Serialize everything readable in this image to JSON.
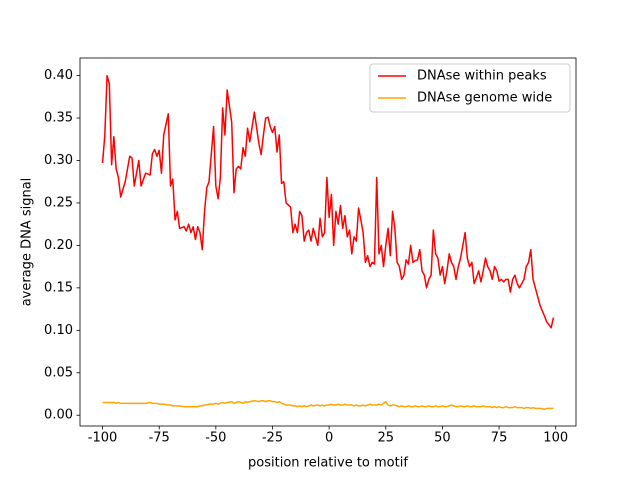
{
  "chart_data": {
    "type": "line",
    "xlabel": "position relative to motif",
    "ylabel": "average DNA signal",
    "x": [
      -100,
      -99,
      -98,
      -97,
      -96,
      -95,
      -94,
      -93,
      -92,
      -90,
      -88,
      -87,
      -86,
      -84,
      -83,
      -81,
      -79,
      -78,
      -77,
      -76,
      -75,
      -74,
      -73,
      -71,
      -70,
      -69,
      -68,
      -67,
      -66,
      -64,
      -63,
      -62,
      -61,
      -60,
      -59,
      -58,
      -57,
      -56,
      -55,
      -54,
      -53,
      -51,
      -50,
      -49,
      -48,
      -47,
      -46,
      -45,
      -43,
      -42,
      -41,
      -40,
      -39,
      -38,
      -37,
      -36,
      -35,
      -33,
      -31,
      -30,
      -29,
      -28,
      -27,
      -26,
      -25,
      -24,
      -23,
      -22,
      -21,
      -20,
      -19,
      -17,
      -16,
      -15,
      -14,
      -13,
      -12,
      -11,
      -10,
      -9,
      -8,
      -7,
      -5,
      -4,
      -3,
      -2,
      -1,
      0,
      1,
      2,
      3,
      4,
      5,
      6,
      7,
      8,
      9,
      10,
      11,
      12,
      13,
      14,
      15,
      16,
      17,
      18,
      19,
      20,
      21,
      22,
      23,
      24,
      25,
      26,
      27,
      28,
      29,
      30,
      31,
      32,
      33,
      34,
      35,
      36,
      37,
      38,
      39,
      40,
      41,
      42,
      43,
      44,
      45,
      46,
      47,
      48,
      49,
      50,
      51,
      52,
      53,
      54,
      55,
      56,
      57,
      58,
      59,
      60,
      61,
      62,
      63,
      64,
      65,
      66,
      67,
      68,
      69,
      70,
      71,
      72,
      73,
      74,
      75,
      76,
      77,
      78,
      79,
      80,
      81,
      82,
      83,
      84,
      85,
      86,
      87,
      88,
      89,
      90,
      91,
      92,
      93,
      95,
      96,
      98,
      99
    ],
    "series": [
      {
        "name": "DNAse within peaks",
        "color": "#ff0000",
        "values": [
          0.297,
          0.33,
          0.4,
          0.39,
          0.295,
          0.328,
          0.29,
          0.28,
          0.257,
          0.275,
          0.305,
          0.303,
          0.27,
          0.3,
          0.27,
          0.285,
          0.283,
          0.308,
          0.313,
          0.305,
          0.312,
          0.285,
          0.33,
          0.355,
          0.27,
          0.278,
          0.23,
          0.24,
          0.22,
          0.222,
          0.217,
          0.225,
          0.215,
          0.222,
          0.207,
          0.222,
          0.215,
          0.195,
          0.24,
          0.268,
          0.275,
          0.34,
          0.27,
          0.255,
          0.28,
          0.362,
          0.33,
          0.383,
          0.345,
          0.262,
          0.29,
          0.293,
          0.29,
          0.315,
          0.305,
          0.338,
          0.322,
          0.357,
          0.32,
          0.307,
          0.33,
          0.35,
          0.351,
          0.34,
          0.333,
          0.34,
          0.31,
          0.33,
          0.273,
          0.275,
          0.25,
          0.245,
          0.215,
          0.225,
          0.215,
          0.24,
          0.235,
          0.205,
          0.215,
          0.218,
          0.205,
          0.22,
          0.2,
          0.232,
          0.21,
          0.215,
          0.28,
          0.233,
          0.26,
          0.2,
          0.24,
          0.225,
          0.247,
          0.22,
          0.235,
          0.21,
          0.218,
          0.19,
          0.21,
          0.205,
          0.244,
          0.23,
          0.215,
          0.18,
          0.188,
          0.175,
          0.18,
          0.178,
          0.28,
          0.19,
          0.2,
          0.175,
          0.2,
          0.22,
          0.188,
          0.24,
          0.22,
          0.18,
          0.175,
          0.16,
          0.165,
          0.183,
          0.178,
          0.2,
          0.18,
          0.182,
          0.183,
          0.195,
          0.17,
          0.165,
          0.15,
          0.16,
          0.165,
          0.218,
          0.19,
          0.185,
          0.165,
          0.175,
          0.155,
          0.17,
          0.19,
          0.18,
          0.175,
          0.16,
          0.175,
          0.185,
          0.2,
          0.215,
          0.185,
          0.175,
          0.18,
          0.155,
          0.162,
          0.17,
          0.157,
          0.17,
          0.185,
          0.175,
          0.17,
          0.16,
          0.175,
          0.17,
          0.158,
          0.16,
          0.157,
          0.16,
          0.16,
          0.145,
          0.16,
          0.165,
          0.155,
          0.15,
          0.155,
          0.16,
          0.175,
          0.18,
          0.195,
          0.16,
          0.15,
          0.14,
          0.13,
          0.117,
          0.11,
          0.103,
          0.115
        ]
      },
      {
        "name": "DNAse genome wide",
        "color": "#ffa500",
        "values": [
          0.015,
          0.015,
          0.015,
          0.015,
          0.015,
          0.015,
          0.014,
          0.015,
          0.014,
          0.014,
          0.014,
          0.014,
          0.014,
          0.014,
          0.014,
          0.014,
          0.015,
          0.014,
          0.014,
          0.014,
          0.013,
          0.013,
          0.013,
          0.012,
          0.012,
          0.011,
          0.011,
          0.011,
          0.011,
          0.01,
          0.01,
          0.01,
          0.01,
          0.01,
          0.01,
          0.01,
          0.011,
          0.011,
          0.012,
          0.012,
          0.013,
          0.013,
          0.014,
          0.013,
          0.014,
          0.015,
          0.014,
          0.015,
          0.016,
          0.014,
          0.015,
          0.016,
          0.015,
          0.014,
          0.016,
          0.015,
          0.016,
          0.017,
          0.016,
          0.017,
          0.017,
          0.016,
          0.017,
          0.017,
          0.016,
          0.016,
          0.015,
          0.016,
          0.014,
          0.013,
          0.012,
          0.012,
          0.011,
          0.011,
          0.01,
          0.011,
          0.01,
          0.011,
          0.01,
          0.011,
          0.012,
          0.011,
          0.012,
          0.011,
          0.012,
          0.011,
          0.012,
          0.012,
          0.013,
          0.012,
          0.012,
          0.013,
          0.012,
          0.012,
          0.013,
          0.012,
          0.012,
          0.012,
          0.011,
          0.012,
          0.011,
          0.011,
          0.012,
          0.011,
          0.012,
          0.013,
          0.012,
          0.012,
          0.012,
          0.013,
          0.012,
          0.014,
          0.016,
          0.012,
          0.011,
          0.012,
          0.012,
          0.011,
          0.01,
          0.011,
          0.01,
          0.01,
          0.011,
          0.01,
          0.01,
          0.011,
          0.01,
          0.01,
          0.011,
          0.01,
          0.01,
          0.011,
          0.01,
          0.01,
          0.011,
          0.01,
          0.01,
          0.011,
          0.01,
          0.01,
          0.011,
          0.012,
          0.011,
          0.01,
          0.01,
          0.011,
          0.01,
          0.01,
          0.011,
          0.01,
          0.01,
          0.011,
          0.01,
          0.01,
          0.01,
          0.011,
          0.01,
          0.01,
          0.01,
          0.009,
          0.01,
          0.009,
          0.01,
          0.009,
          0.009,
          0.01,
          0.009,
          0.009,
          0.009,
          0.01,
          0.009,
          0.009,
          0.009,
          0.008,
          0.009,
          0.009,
          0.008,
          0.009,
          0.008,
          0.008,
          0.008,
          0.007,
          0.008,
          0.008,
          0.008
        ]
      }
    ],
    "xlim": [
      -109.95,
      108.95
    ],
    "xticks": [
      -100,
      -75,
      -50,
      -25,
      0,
      25,
      50,
      75,
      100
    ],
    "ylim": [
      -0.0127,
      0.4207
    ],
    "yticks": [
      {
        "value": 0,
        "label": "0.00"
      },
      0.05,
      {
        "value": 0.1,
        "label": "0.10"
      },
      0.15,
      {
        "value": 0.2,
        "label": "0.20"
      },
      0.25,
      {
        "value": 0.3,
        "label": "0.30"
      },
      0.35,
      {
        "value": 0.4,
        "label": "0.40"
      }
    ],
    "legend": "upper right"
  }
}
